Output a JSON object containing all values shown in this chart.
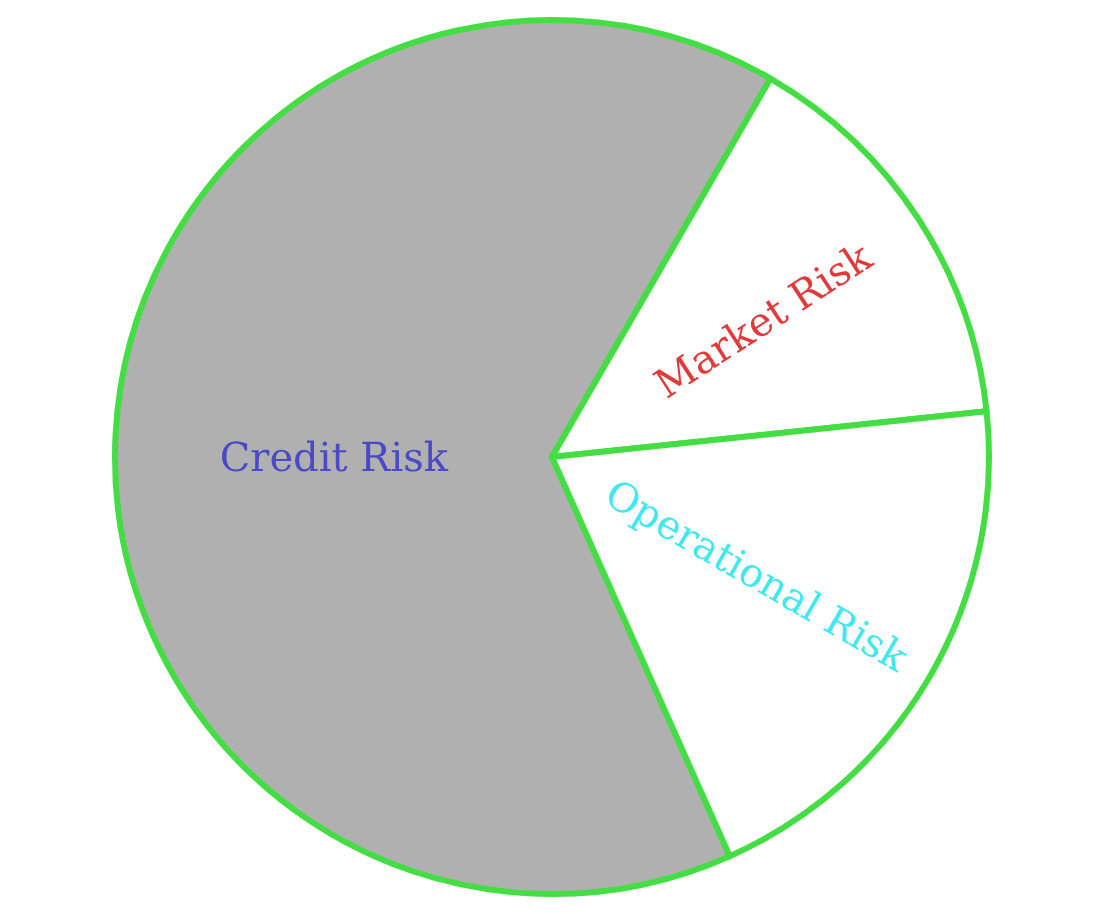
{
  "chart_data": {
    "type": "pie",
    "categories": [
      "Credit Risk",
      "Market Risk",
      "Operational Risk"
    ],
    "values": [
      65,
      15,
      20
    ],
    "colors": [
      "#b0b0b0",
      "#ffffff",
      "#ffffff"
    ]
  }
}
